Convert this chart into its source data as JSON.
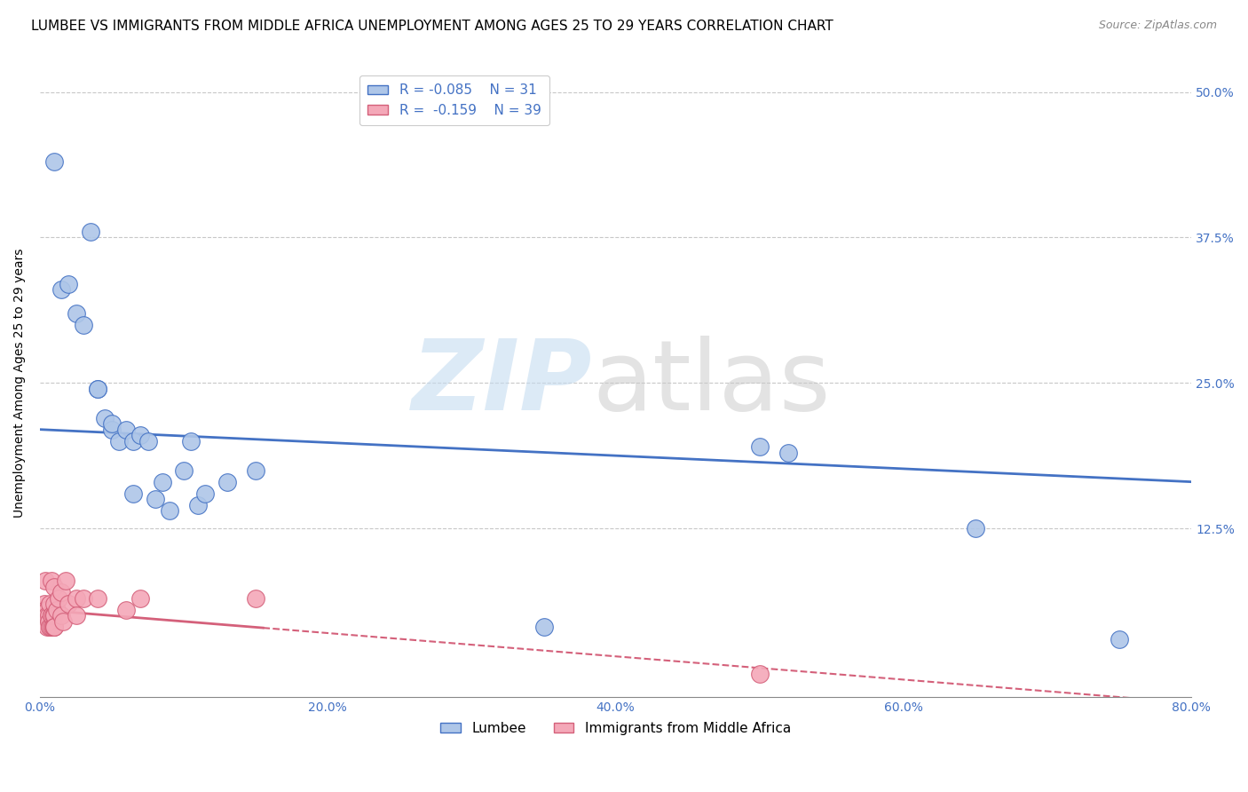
{
  "title": "LUMBEE VS IMMIGRANTS FROM MIDDLE AFRICA UNEMPLOYMENT AMONG AGES 25 TO 29 YEARS CORRELATION CHART",
  "source": "Source: ZipAtlas.com",
  "ylabel_text": "Unemployment Among Ages 25 to 29 years",
  "legend_labels": [
    "Lumbee",
    "Immigrants from Middle Africa"
  ],
  "lumbee_R": -0.085,
  "lumbee_N": 31,
  "africa_R": -0.159,
  "africa_N": 39,
  "lumbee_color": "#aec6e8",
  "lumbee_line_color": "#4472c4",
  "africa_color": "#f4a8b8",
  "africa_line_color": "#d4607a",
  "background_color": "#ffffff",
  "grid_color": "#c8c8c8",
  "title_fontsize": 11,
  "axis_label_fontsize": 10,
  "tick_fontsize": 10,
  "lumbee_x": [
    0.01,
    0.015,
    0.02,
    0.025,
    0.03,
    0.035,
    0.04,
    0.04,
    0.045,
    0.05,
    0.05,
    0.055,
    0.06,
    0.065,
    0.065,
    0.07,
    0.075,
    0.08,
    0.085,
    0.09,
    0.1,
    0.105,
    0.11,
    0.115,
    0.13,
    0.15,
    0.35,
    0.5,
    0.52,
    0.65,
    0.75
  ],
  "lumbee_y": [
    0.44,
    0.33,
    0.335,
    0.31,
    0.3,
    0.38,
    0.245,
    0.245,
    0.22,
    0.21,
    0.215,
    0.2,
    0.21,
    0.2,
    0.155,
    0.205,
    0.2,
    0.15,
    0.165,
    0.14,
    0.175,
    0.2,
    0.145,
    0.155,
    0.165,
    0.175,
    0.04,
    0.195,
    0.19,
    0.125,
    0.03
  ],
  "africa_x": [
    0.002,
    0.003,
    0.004,
    0.004,
    0.005,
    0.005,
    0.005,
    0.006,
    0.006,
    0.007,
    0.007,
    0.007,
    0.008,
    0.008,
    0.008,
    0.008,
    0.009,
    0.009,
    0.009,
    0.01,
    0.01,
    0.01,
    0.01,
    0.01,
    0.012,
    0.013,
    0.015,
    0.015,
    0.016,
    0.018,
    0.02,
    0.025,
    0.025,
    0.03,
    0.04,
    0.06,
    0.07,
    0.15,
    0.5
  ],
  "africa_y": [
    0.055,
    0.06,
    0.055,
    0.08,
    0.055,
    0.04,
    0.05,
    0.05,
    0.045,
    0.06,
    0.04,
    0.04,
    0.04,
    0.05,
    0.05,
    0.08,
    0.05,
    0.04,
    0.04,
    0.075,
    0.06,
    0.05,
    0.04,
    0.04,
    0.055,
    0.065,
    0.07,
    0.05,
    0.045,
    0.08,
    0.06,
    0.065,
    0.05,
    0.065,
    0.065,
    0.055,
    0.065,
    0.065,
    0.0
  ],
  "xlim": [
    0,
    0.8
  ],
  "ylim": [
    -0.02,
    0.52
  ],
  "x_ticks": [
    0.0,
    0.2,
    0.4,
    0.6,
    0.8
  ],
  "y_ticks": [
    0.0,
    0.125,
    0.25,
    0.375,
    0.5
  ],
  "y_tick_labels": [
    "",
    "12.5%",
    "25.0%",
    "37.5%",
    "50.0%"
  ],
  "x_tick_labels": [
    "0.0%",
    "20.0%",
    "40.0%",
    "60.0%",
    "80.0%"
  ]
}
